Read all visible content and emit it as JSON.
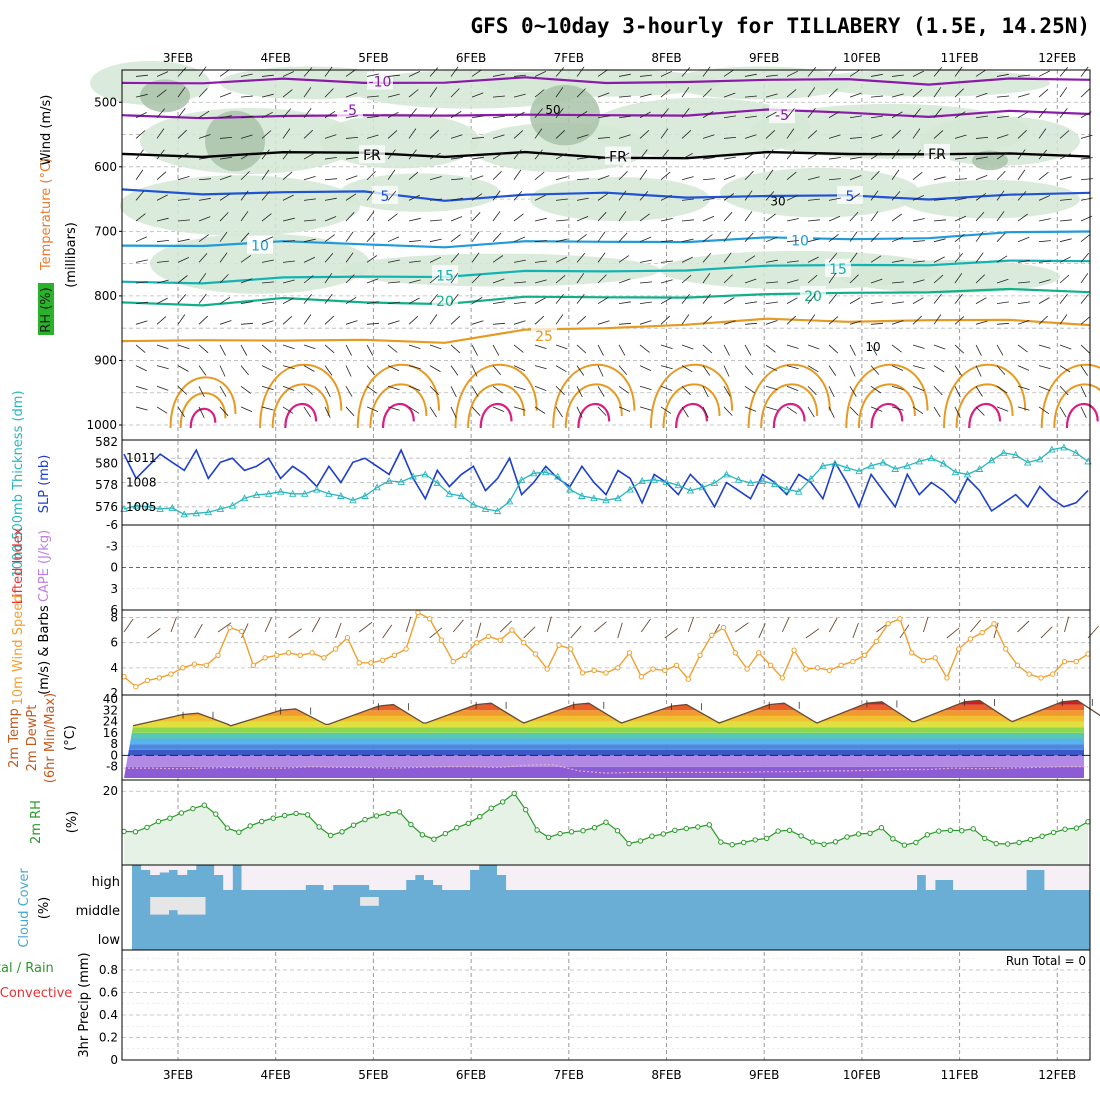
{
  "title": "GFS 0~10day 3-hourly for TILLABERY (1.5E, 14.25N)",
  "colors": {
    "rh_fill": "#d5e8d5",
    "rh_fill_dark": "#a9c3a9",
    "temp_purple": "#8a1aa8",
    "temp_fr": "#000000",
    "temp_blue5": "#1f52d4",
    "temp_blue10": "#1e9bd8",
    "temp_cyan15": "#12b3b3",
    "temp_green20": "#12b08a",
    "temp_orange25": "#e69a22",
    "temp_magenta": "#d81e82",
    "slp": "#1d3fce",
    "thickness": "#29b6bd",
    "cape": "#c080e0",
    "li": "#e83030",
    "wind10": "#f0a030",
    "rh2m": "#2a9a2a",
    "cloud": "#6aaed6",
    "precip_total": "#2a9a2a",
    "precip_conv": "#e83030"
  },
  "chart_data": [
    {
      "panel": "profile",
      "type": "contour",
      "title": "GFS 0~10day 3-hourly for TILLABERY (1.5E, 14.25N)",
      "x_dates": [
        "3FEB",
        "4FEB",
        "5FEB",
        "6FEB",
        "7FEB",
        "8FEB",
        "9FEB",
        "10FEB",
        "11FEB",
        "12FEB"
      ],
      "ylabel": "(millibars)",
      "side_labels": [
        "RH (%)",
        "Temperature (°C)",
        "Wind (m/s)"
      ],
      "y_ticks": [
        500,
        600,
        700,
        800,
        900,
        1000
      ],
      "ylim": [
        450,
        1000
      ],
      "contour_labels": [
        "-10",
        "-5",
        "FR",
        "5",
        "10",
        "15",
        "20",
        "25",
        "50",
        "30",
        "10"
      ],
      "isotherms": [
        {
          "label": "-10",
          "color": "#8a1aa8",
          "levels": [
            470,
            468,
            466,
            470,
            467,
            464,
            470,
            466,
            468,
            464,
            470,
            466,
            465
          ]
        },
        {
          "label": "-5",
          "color": "#8a1aa8",
          "levels": [
            520,
            522,
            524,
            520,
            518,
            522,
            520,
            518,
            514,
            516,
            520,
            516,
            518
          ]
        },
        {
          "label": "FR",
          "color": "#000000",
          "levels": [
            580,
            582,
            580,
            578,
            582,
            580,
            586,
            584,
            580,
            580,
            578,
            582,
            584
          ]
        },
        {
          "label": "5",
          "color": "#1f52d4",
          "levels": [
            635,
            640,
            642,
            638,
            650,
            646,
            640,
            645,
            648,
            644,
            648,
            646,
            640
          ]
        },
        {
          "label": "10",
          "color": "#1e9bd8",
          "levels": [
            722,
            720,
            718,
            720,
            722,
            718,
            716,
            714,
            712,
            712,
            708,
            704,
            700
          ]
        },
        {
          "label": "15",
          "color": "#12b3b3",
          "levels": [
            778,
            778,
            774,
            770,
            768,
            764,
            762,
            758,
            756,
            752,
            750,
            748,
            746
          ]
        },
        {
          "label": "20",
          "color": "#12b08a",
          "levels": [
            810,
            812,
            806,
            810,
            810,
            804,
            802,
            800,
            800,
            795,
            792,
            792,
            794
          ]
        },
        {
          "label": "25",
          "color": "#e69a22",
          "levels": [
            870,
            866,
            872,
            868,
            870,
            855,
            850,
            842,
            838,
            840,
            835,
            840,
            845
          ]
        }
      ]
    },
    {
      "panel": "slp_thickness",
      "type": "line",
      "ylabels": [
        "1000-500mb Thickness (dm)",
        "SLP (mb)"
      ],
      "left_ticks": [
        576,
        578,
        580,
        582
      ],
      "left_range": [
        574.5,
        582
      ],
      "right_ticks": [
        1005,
        1008,
        1011
      ],
      "right_range": [
        1003,
        1013
      ],
      "series": [
        {
          "values": [
            1011.5,
            1008.5,
            1010,
            1011.5,
            1010.5,
            1009.5,
            1012,
            1008.5,
            1010.5,
            1011,
            1009.5,
            1010,
            1011,
            1008.5,
            1010,
            1009,
            1007.5,
            1010,
            1008,
            1010.5,
            1011,
            1010,
            1009,
            1012,
            1008.5,
            1006,
            1009.5,
            1007.5,
            1009,
            1010,
            1007,
            1008.5,
            1011,
            1006.5,
            1008,
            1010,
            1008.5,
            1007.5,
            1010,
            1008,
            1006.5,
            1009.5,
            1008.5,
            1005.5,
            1009,
            1008,
            1006.5,
            1009,
            1007.5,
            1005,
            1008,
            1007,
            1006,
            1009,
            1008,
            1006.5,
            1009,
            1008,
            1006,
            1010.5,
            1008,
            1005,
            1009,
            1007,
            1005,
            1009,
            1006.5,
            1008,
            1007,
            1005.5,
            1008.5,
            1007,
            1004.5,
            1005.5,
            1006.5,
            1005,
            1007.5,
            1006,
            1005,
            1005.5,
            1007
          ]
        },
        {
          "values": [
            575.8,
            576.1,
            576,
            575.8,
            575.9,
            575.3,
            575.4,
            575.5,
            575.8,
            576.1,
            576.8,
            577.1,
            577.2,
            577.4,
            577.2,
            577.2,
            577.6,
            577.2,
            577,
            576.6,
            577,
            577.8,
            578.4,
            578.3,
            578.8,
            579,
            578.2,
            577.2,
            577,
            576.2,
            575.8,
            575.6,
            576.5,
            578.5,
            579.1,
            579.2,
            578.8,
            577.6,
            577,
            576.8,
            576.6,
            576.8,
            577.6,
            578.4,
            578.5,
            578.3,
            578,
            577.5,
            577.8,
            578.2,
            579,
            578.5,
            578.2,
            578.4,
            578.1,
            577.6,
            577.4,
            578.6,
            579.8,
            580,
            579.6,
            579.3,
            579.8,
            580.1,
            579.5,
            579.8,
            580.2,
            580.5,
            580,
            579.2,
            579,
            579.5,
            580.3,
            581,
            580.8,
            580.1,
            580.4,
            581.3,
            581.5,
            581,
            580.2
          ]
        }
      ]
    },
    {
      "panel": "cape_li",
      "type": "line",
      "ylabels": [
        "Lifted Index",
        "CAPE (J/kg)"
      ],
      "y_ticks": [
        6,
        3,
        0,
        -3,
        -6
      ],
      "ylim": [
        -6,
        6
      ],
      "series": [
        {
          "values": [
            0,
            0
          ]
        }
      ]
    },
    {
      "panel": "wind10m",
      "type": "line",
      "ylabels": [
        "10m Wind Speed",
        "(m/s) & Barbs"
      ],
      "y_ticks": [
        2,
        4,
        6,
        8
      ],
      "ylim": [
        2,
        8.6
      ],
      "series": [
        {
          "values": [
            3.3,
            2.5,
            3,
            3.2,
            3.5,
            4,
            4.3,
            4.2,
            5,
            7.2,
            6.9,
            4.2,
            4.8,
            5,
            5.2,
            5,
            5.2,
            4.8,
            5.5,
            6.4,
            4.4,
            4.4,
            4.6,
            5,
            5.5,
            8.4,
            7.9,
            6.2,
            4.5,
            5,
            6,
            6.5,
            6.2,
            7,
            6,
            5.1,
            3.9,
            5.8,
            5.5,
            3.6,
            3.8,
            3.6,
            4,
            5.2,
            3.3,
            3.9,
            3.8,
            4.2,
            3.1,
            5,
            6.6,
            7.2,
            5.2,
            3.9,
            5.2,
            4.2,
            3.2,
            5.4,
            3.9,
            4,
            3.8,
            4.2,
            4.5,
            5,
            6.1,
            7.5,
            7.9,
            5.2,
            4.6,
            4.8,
            3.2,
            5.5,
            6.3,
            6.8,
            7.5,
            5.5,
            4.2,
            3.5,
            3.2,
            3.5,
            4.5,
            4.5,
            5.1
          ]
        }
      ]
    },
    {
      "panel": "temp2m",
      "type": "area",
      "ylabels": [
        "2m Temp",
        "2m DewPt",
        "(6hr Min/Max)",
        "(°C)"
      ],
      "y_ticks": [
        40,
        32,
        24,
        16,
        8,
        0,
        -8
      ],
      "ylim": [
        -16,
        40
      ],
      "temp_daily": [
        {
          "min": 21,
          "max": 30
        },
        {
          "min": 21,
          "max": 33
        },
        {
          "min": 22,
          "max": 36
        },
        {
          "min": 23,
          "max": 37
        },
        {
          "min": 23,
          "max": 37
        },
        {
          "min": 23,
          "max": 36
        },
        {
          "min": 23,
          "max": 37
        },
        {
          "min": 23,
          "max": 38
        },
        {
          "min": 24,
          "max": 39
        },
        {
          "min": 24,
          "max": 39
        }
      ],
      "dewpoint": [
        -9,
        -9,
        -9.5,
        -9,
        -8.5,
        -9,
        -9,
        -8,
        -8.5,
        -8.5,
        -9,
        -8.5,
        -8,
        -8,
        -8.5,
        -7,
        -6.5,
        -11,
        -12.5,
        -12,
        -12,
        -12,
        -12,
        -12,
        -11.5,
        -11.5,
        -11,
        -11,
        -10.5,
        -10,
        -10,
        -9,
        -9.5,
        -9,
        -8.5,
        -8,
        -8
      ]
    },
    {
      "panel": "rh2m",
      "type": "area",
      "ylabels": [
        "2m RH",
        "(%)"
      ],
      "y_ticks": [
        20
      ],
      "ylim": [
        0,
        22.5
      ],
      "series": [
        {
          "values": [
            9.1,
            9,
            10.2,
            11.8,
            12.7,
            14.1,
            15.3,
            16.2,
            13.8,
            10,
            8.9,
            10.6,
            11.8,
            12.7,
            13.4,
            14,
            13.6,
            10.3,
            8,
            9,
            10.8,
            12.3,
            13.3,
            14,
            14.4,
            11,
            8.2,
            7,
            8.5,
            10.1,
            11.3,
            13.1,
            15.4,
            17.1,
            19.4,
            15,
            9.5,
            7.5,
            8.5,
            9,
            9.3,
            10.1,
            11.6,
            9.3,
            5.8,
            6.5,
            7.8,
            8.4,
            9.4,
            9.9,
            10.3,
            10.9,
            6.2,
            5.5,
            6.1,
            6.8,
            7.2,
            9.2,
            9.4,
            7.9,
            6.2,
            5.6,
            6.3,
            7.6,
            8.4,
            8.6,
            10.1,
            7.1,
            5.4,
            6.1,
            8.2,
            9.2,
            9.4,
            9.3,
            9.8,
            7.2,
            5.8,
            5.7,
            6.1,
            6.9,
            7.8,
            8.8,
            9.7,
            10,
            11.7
          ]
        }
      ]
    },
    {
      "panel": "cloud",
      "type": "bar",
      "ylabels": [
        "Cloud Cover",
        "(%)"
      ],
      "y_labels": [
        "high",
        "middle",
        "low"
      ],
      "series": [
        {
          "values": [
            100,
            80,
            60,
            70,
            80,
            60,
            80,
            100,
            100,
            60,
            0,
            100,
            0,
            0,
            0,
            0,
            0,
            0,
            0,
            20,
            20,
            0,
            20,
            20,
            20,
            20,
            0,
            0,
            0,
            0,
            40,
            60,
            40,
            20,
            0,
            0,
            0,
            80,
            100,
            100,
            60,
            0,
            0,
            0,
            0,
            0,
            0,
            0,
            0,
            0,
            0,
            0,
            0,
            0,
            0,
            0,
            0,
            0,
            0,
            0,
            0,
            0,
            0,
            0,
            0,
            0,
            0,
            0,
            0,
            0,
            0,
            0,
            0,
            0,
            0,
            0,
            0,
            0,
            0,
            0,
            0,
            0,
            0,
            0,
            0,
            0,
            60,
            0,
            40,
            40,
            0,
            0,
            0,
            0,
            0,
            0,
            0,
            0,
            80,
            80,
            0,
            0,
            0,
            0,
            0
          ]
        },
        {
          "values": [
            100,
            0,
            80,
            80,
            60,
            80,
            80,
            80,
            100,
            0,
            0,
            0,
            0,
            0,
            0,
            0,
            0,
            0,
            0,
            0,
            0,
            0,
            0,
            0,
            0,
            40,
            40,
            0,
            0,
            0,
            0,
            0,
            0,
            0,
            0,
            0,
            0,
            0,
            0,
            0,
            0,
            0,
            0,
            0,
            0,
            0,
            0,
            0,
            0,
            0,
            0,
            0,
            0,
            0,
            0,
            0,
            0,
            0,
            0,
            0,
            0,
            0,
            0,
            0,
            0,
            0,
            0,
            0,
            0,
            0,
            0,
            0,
            0,
            0,
            0,
            0,
            0,
            0,
            0,
            0,
            0,
            0,
            0,
            0,
            0,
            0,
            0,
            0,
            0,
            0,
            0,
            0,
            0,
            0,
            0,
            0,
            0,
            0,
            0,
            0,
            0,
            0,
            0,
            0,
            0
          ]
        }
      ]
    },
    {
      "panel": "precip",
      "type": "bar",
      "ylabels": [
        "Total / Rain",
        "Convective",
        "3hr Precip (mm)"
      ],
      "y_ticks": [
        0,
        0.2,
        0.4,
        0.6,
        0.8
      ],
      "ylim": [
        0,
        0.96
      ],
      "annotation": "Run Total = 0",
      "series": [
        {
          "values": []
        }
      ]
    }
  ]
}
